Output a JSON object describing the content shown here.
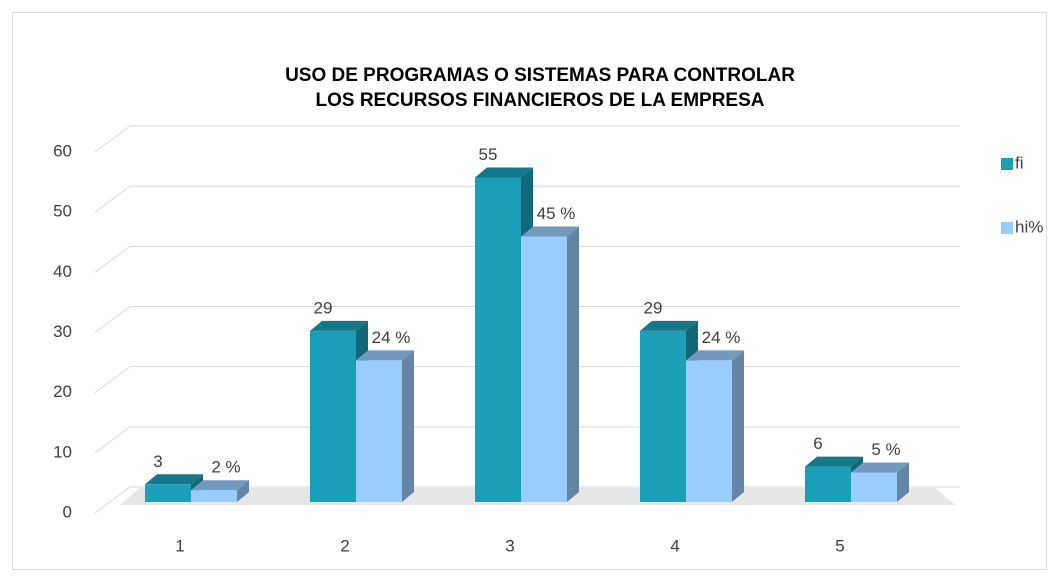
{
  "chart_data": {
    "type": "bar3d",
    "title": [
      "USO DE PROGRAMAS O SISTEMAS PARA CONTROLAR",
      "LOS RECURSOS FINANCIEROS DE LA EMPRESA"
    ],
    "categories": [
      "1",
      "2",
      "3",
      "4",
      "5"
    ],
    "series": [
      {
        "name": "fi",
        "color": "#1b9fb8",
        "values": [
          3,
          29,
          55,
          29,
          6
        ]
      },
      {
        "name": "hi%",
        "color": "#99ccff",
        "values": [
          2,
          24,
          45,
          24,
          5
        ],
        "value_labels": [
          "2 %",
          "24 %",
          "45 %",
          "24 %",
          "5 %"
        ]
      }
    ],
    "ylim": [
      0,
      60
    ],
    "yticks": [
      0,
      10,
      20,
      30,
      40,
      50,
      60
    ],
    "grid": true,
    "legend": "right"
  }
}
